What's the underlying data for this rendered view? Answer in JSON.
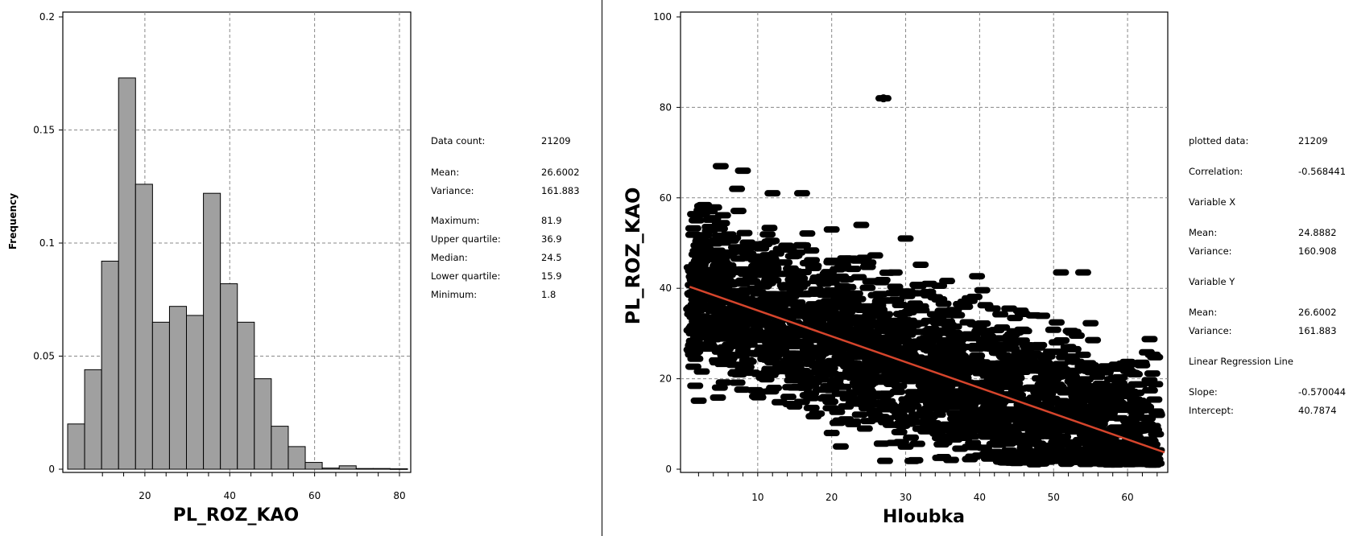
{
  "histogram": {
    "stats": [
      {
        "label": "Data count:",
        "value": "21209"
      },
      {
        "label": "Mean:",
        "value": "26.6002"
      },
      {
        "label": "Variance:",
        "value": "161.883"
      },
      {
        "label": "Maximum:",
        "value": "81.9"
      },
      {
        "label": "Upper quartile:",
        "value": "36.9"
      },
      {
        "label": "Median:",
        "value": "24.5"
      },
      {
        "label": "Lower quartile:",
        "value": "15.9"
      },
      {
        "label": "Minimum:",
        "value": "1.8"
      }
    ]
  },
  "scatter": {
    "stats": [
      {
        "label": "plotted data:",
        "value": "21209"
      },
      {
        "label": "Correlation:",
        "value": "-0.568441"
      },
      {
        "label": "Variable X",
        "value": ""
      },
      {
        "label": "Mean:",
        "value": "24.8882"
      },
      {
        "label": "Variance:",
        "value": "160.908"
      },
      {
        "label": "Variable Y",
        "value": ""
      },
      {
        "label": "Mean:",
        "value": "26.6002"
      },
      {
        "label": "Variance:",
        "value": "161.883"
      },
      {
        "label": "Linear Regression Line",
        "value": ""
      },
      {
        "label": "Slope:",
        "value": "-0.570044"
      },
      {
        "label": "Intercept:",
        "value": "40.7874"
      }
    ]
  },
  "colors": {
    "bar_fill": "#a0a0a0",
    "regression_line": "#d6452c",
    "points": "#000000"
  },
  "chart_data": [
    {
      "type": "bar",
      "title": "",
      "xlabel": "PL_ROZ_KAO",
      "ylabel": "Frequency",
      "xlim": [
        1.8,
        81.9
      ],
      "ylim": [
        0,
        0.2
      ],
      "xticks": [
        "20",
        "40",
        "60",
        "80"
      ],
      "yticks": [
        "0",
        "0.05",
        "0.1",
        "0.15",
        "0.2"
      ],
      "grid": true,
      "bins": [
        {
          "x0": 1.8,
          "x1": 5.8,
          "value": 0.02
        },
        {
          "x0": 5.8,
          "x1": 9.8,
          "value": 0.044
        },
        {
          "x0": 9.8,
          "x1": 13.8,
          "value": 0.092
        },
        {
          "x0": 13.8,
          "x1": 17.8,
          "value": 0.173
        },
        {
          "x0": 17.8,
          "x1": 21.8,
          "value": 0.126
        },
        {
          "x0": 21.8,
          "x1": 25.8,
          "value": 0.065
        },
        {
          "x0": 25.8,
          "x1": 29.8,
          "value": 0.072
        },
        {
          "x0": 29.8,
          "x1": 33.8,
          "value": 0.068
        },
        {
          "x0": 33.8,
          "x1": 37.8,
          "value": 0.122
        },
        {
          "x0": 37.8,
          "x1": 41.8,
          "value": 0.082
        },
        {
          "x0": 41.8,
          "x1": 45.8,
          "value": 0.065
        },
        {
          "x0": 45.8,
          "x1": 49.8,
          "value": 0.04
        },
        {
          "x0": 49.8,
          "x1": 53.8,
          "value": 0.019
        },
        {
          "x0": 53.8,
          "x1": 57.8,
          "value": 0.01
        },
        {
          "x0": 57.8,
          "x1": 61.8,
          "value": 0.003
        },
        {
          "x0": 61.8,
          "x1": 65.8,
          "value": 0.0005
        },
        {
          "x0": 65.8,
          "x1": 69.8,
          "value": 0.0015
        },
        {
          "x0": 69.8,
          "x1": 73.8,
          "value": 0.0003
        },
        {
          "x0": 73.8,
          "x1": 77.8,
          "value": 0.0003
        },
        {
          "x0": 77.8,
          "x1": 81.9,
          "value": 0.0002
        }
      ]
    },
    {
      "type": "scatter",
      "title": "",
      "xlabel": "Hloubka",
      "ylabel": "PL_ROZ_KAO",
      "xlim": [
        0,
        65
      ],
      "ylim": [
        0,
        100
      ],
      "xticks": [
        "10",
        "20",
        "30",
        "40",
        "50",
        "60"
      ],
      "yticks": [
        "0",
        "20",
        "40",
        "60",
        "80",
        "100"
      ],
      "grid": true,
      "regression": {
        "slope": -0.570044,
        "intercept": 40.7874
      },
      "sample_points": [
        [
          27,
          82
        ],
        [
          5,
          67
        ],
        [
          8,
          66
        ],
        [
          51,
          43.5
        ],
        [
          54,
          43.5
        ],
        [
          44,
          35.5
        ],
        [
          12,
          61
        ],
        [
          16,
          61
        ],
        [
          24,
          54
        ],
        [
          30,
          51
        ],
        [
          20,
          53
        ],
        [
          3,
          40
        ],
        [
          10,
          47
        ],
        [
          15,
          30
        ],
        [
          25,
          25
        ],
        [
          35,
          22
        ],
        [
          40,
          15
        ],
        [
          45,
          12
        ],
        [
          50,
          10
        ],
        [
          55,
          5
        ],
        [
          60,
          8
        ],
        [
          64,
          12
        ],
        [
          20,
          8
        ],
        [
          30,
          5
        ],
        [
          40,
          3
        ],
        [
          45,
          6
        ],
        [
          35,
          35
        ],
        [
          22,
          42
        ]
      ]
    }
  ]
}
